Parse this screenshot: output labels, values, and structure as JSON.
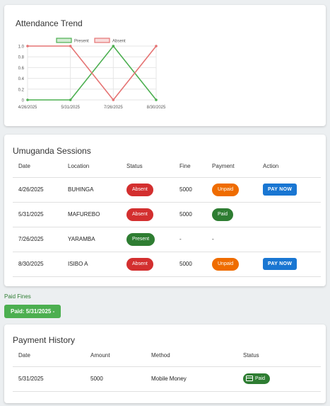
{
  "chart": {
    "title": "Attendance Trend"
  },
  "chart_data": {
    "type": "line",
    "title": "Attendance Trend",
    "categories": [
      "4/26/2025",
      "5/31/2025",
      "7/26/2025",
      "8/30/2025"
    ],
    "series": [
      {
        "name": "Present",
        "color": "#4caf50",
        "values": [
          0,
          0,
          1,
          0
        ]
      },
      {
        "name": "Absent",
        "color": "#e57373",
        "values": [
          1,
          1,
          0,
          1
        ]
      }
    ],
    "yticks": [
      "1.0",
      "0.8",
      "0.6",
      "0.4",
      "0.2",
      "0"
    ],
    "ylim": [
      0,
      1
    ],
    "legend": "top"
  },
  "sessions": {
    "title": "Umuganda Sessions",
    "headers": [
      "Date",
      "Location",
      "Status",
      "Fine",
      "Payment",
      "Action"
    ],
    "rows": [
      {
        "date": "4/26/2025",
        "location": "BUHINGA",
        "status": "Absent",
        "fine": "5000",
        "payment": "Unpaid",
        "action": "PAY NOW"
      },
      {
        "date": "5/31/2025",
        "location": "MAFUREBO",
        "status": "Absent",
        "fine": "5000",
        "payment": "Paid",
        "action": ""
      },
      {
        "date": "7/26/2025",
        "location": "YARAMBA",
        "status": "Present",
        "fine": "-",
        "payment": "-",
        "action": ""
      },
      {
        "date": "8/30/2025",
        "location": "ISIBO A",
        "status": "Absent",
        "fine": "5000",
        "payment": "Unpaid",
        "action": "PAY NOW"
      }
    ]
  },
  "paid_fines": {
    "label": "Paid Fines",
    "chip": "Paid: 5/31/2025 -"
  },
  "history": {
    "title": "Payment History",
    "headers": [
      "Date",
      "Amount",
      "Method",
      "Status"
    ],
    "rows": [
      {
        "date": "5/31/2025",
        "amount": "5000",
        "method": "Mobile Money",
        "status": "Paid",
        "icon": "credit-card-icon"
      }
    ]
  }
}
